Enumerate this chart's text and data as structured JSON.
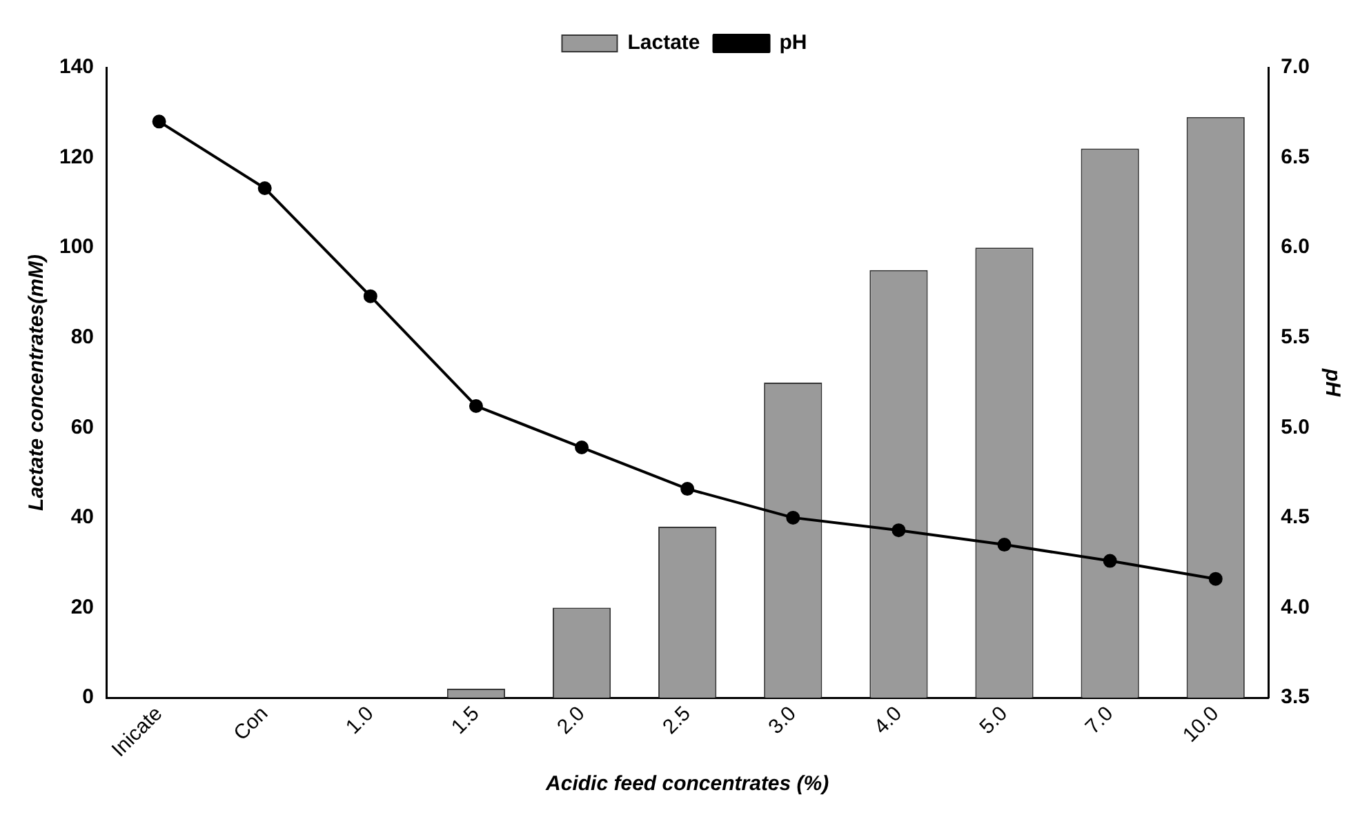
{
  "chart_data": {
    "type": "bar",
    "xlabel": "Acidic feed concentrates (%)",
    "ylabel": "Lactate concentrates(mM)",
    "y2label": "pH",
    "categories": [
      "Inicate",
      "Con",
      "1.0",
      "1.5",
      "2.0",
      "2.5",
      "3.0",
      "4.0",
      "5.0",
      "7.0",
      "10.0"
    ],
    "series": [
      {
        "name": "Lactate",
        "color": "#9a9a9a",
        "values": [
          0,
          0,
          0,
          2,
          20,
          38,
          70,
          95,
          100,
          122,
          129
        ]
      },
      {
        "name": "pH",
        "type": "line",
        "axis": "y2",
        "color": "#000000",
        "marker": "circle",
        "values": [
          6.7,
          6.33,
          5.73,
          5.12,
          4.89,
          4.66,
          4.5,
          4.43,
          4.35,
          4.26,
          4.16
        ]
      }
    ],
    "ylim": [
      0,
      140
    ],
    "yticks": [
      0,
      20,
      40,
      60,
      80,
      100,
      120,
      140
    ],
    "y2lim": [
      3.5,
      7.0
    ],
    "y2ticks": [
      {
        "value": 3.5,
        "label": "3.5"
      },
      {
        "value": 4,
        "label": "4.0"
      },
      {
        "value": 4.5,
        "label": "4.5"
      },
      {
        "value": 5,
        "label": "5.0"
      },
      {
        "value": 5.5,
        "label": "5.5"
      },
      {
        "value": 6,
        "label": "6.0"
      },
      {
        "value": 6.5,
        "label": "6.5"
      },
      {
        "value": 7,
        "label": "7.0"
      }
    ],
    "grid": false,
    "legend": "top"
  }
}
